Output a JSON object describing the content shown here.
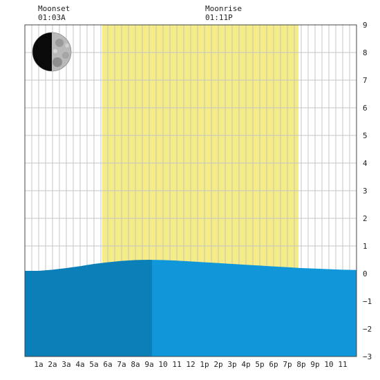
{
  "chart_data": {
    "type": "area",
    "title": "",
    "xlabel": "",
    "ylabel": "",
    "x_tick_labels": [
      "1a",
      "2a",
      "3a",
      "4a",
      "5a",
      "6a",
      "7a",
      "8a",
      "9a",
      "10",
      "11",
      "12",
      "1p",
      "2p",
      "3p",
      "4p",
      "5p",
      "6p",
      "7p",
      "8p",
      "9p",
      "10",
      "11"
    ],
    "y_ticks": [
      9,
      8,
      7,
      6,
      5,
      4,
      3,
      2,
      1,
      0,
      -1,
      -2,
      -3
    ],
    "ylim": [
      -3,
      9
    ],
    "xlim_hours": [
      0,
      24
    ],
    "grid": true,
    "daylight_hours": [
      5.6,
      19.8
    ],
    "high_tide_hour": 9.2,
    "series": [
      {
        "hours": [
          0,
          1,
          2,
          3,
          4,
          5,
          6,
          7,
          8,
          9,
          10,
          11,
          12,
          13,
          14,
          15,
          16,
          17,
          18,
          19,
          20,
          21,
          22,
          23,
          24
        ],
        "values": [
          0.1,
          0.1,
          0.14,
          0.2,
          0.27,
          0.35,
          0.41,
          0.46,
          0.49,
          0.5,
          0.49,
          0.47,
          0.44,
          0.41,
          0.38,
          0.35,
          0.32,
          0.29,
          0.26,
          0.23,
          0.2,
          0.18,
          0.16,
          0.14,
          0.13
        ]
      }
    ],
    "colors": {
      "daylight": "#f5ec86",
      "tide_rising": "#0a7fb8",
      "tide_falling": "#0f97d9",
      "grid": "#c4c4c4"
    }
  },
  "moon": {
    "moonset_label": "Moonset",
    "moonset_time": "01:03A",
    "moonrise_label": "Moonrise",
    "moonrise_time": "01:11P",
    "phase_icon": "half-moon-icon"
  }
}
